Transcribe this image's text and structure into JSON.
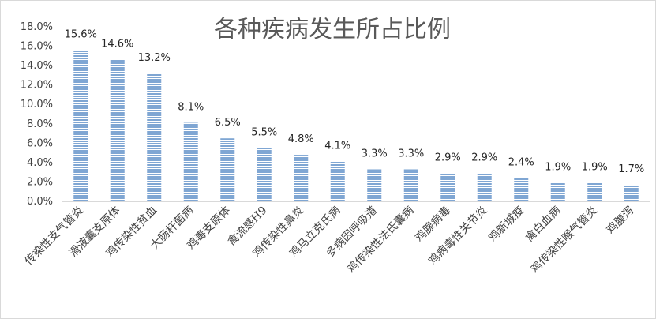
{
  "chart_data": {
    "type": "bar",
    "title": "各种疾病发生所占比例",
    "xlabel": "",
    "ylabel": "",
    "categories": [
      "传染性支气管炎",
      "滑液囊支原体",
      "鸡传染性贫血",
      "大肠杆菌病",
      "鸡毒支原体",
      "禽流感H9",
      "鸡传染性鼻炎",
      "鸡马立克氏病",
      "多病因呼吸道",
      "鸡传染性法氏囊病",
      "鸡腺病毒",
      "鸡病毒性关节炎",
      "鸡新城疫",
      "禽白血病",
      "鸡传染性喉气管炎",
      "鸡腹泻"
    ],
    "values": [
      15.6,
      14.6,
      13.2,
      8.1,
      6.5,
      5.5,
      4.8,
      4.1,
      3.3,
      3.3,
      2.9,
      2.9,
      2.4,
      1.9,
      1.9,
      1.7
    ],
    "value_labels": [
      "15.6%",
      "14.6%",
      "13.2%",
      "8.1%",
      "6.5%",
      "5.5%",
      "4.8%",
      "4.1%",
      "3.3%",
      "3.3%",
      "2.9%",
      "2.9%",
      "2.4%",
      "1.9%",
      "1.9%",
      "1.7%"
    ],
    "yticks": [
      "0.0%",
      "2.0%",
      "4.0%",
      "6.0%",
      "8.0%",
      "10.0%",
      "12.0%",
      "14.0%",
      "16.0%",
      "18.0%"
    ],
    "ylim": [
      0,
      18
    ],
    "grid": false,
    "legend": "none",
    "colors": {
      "bar": "#7fa6d3",
      "bar_stripe": "#ffffff",
      "text": "#404040",
      "title": "#595959"
    }
  }
}
